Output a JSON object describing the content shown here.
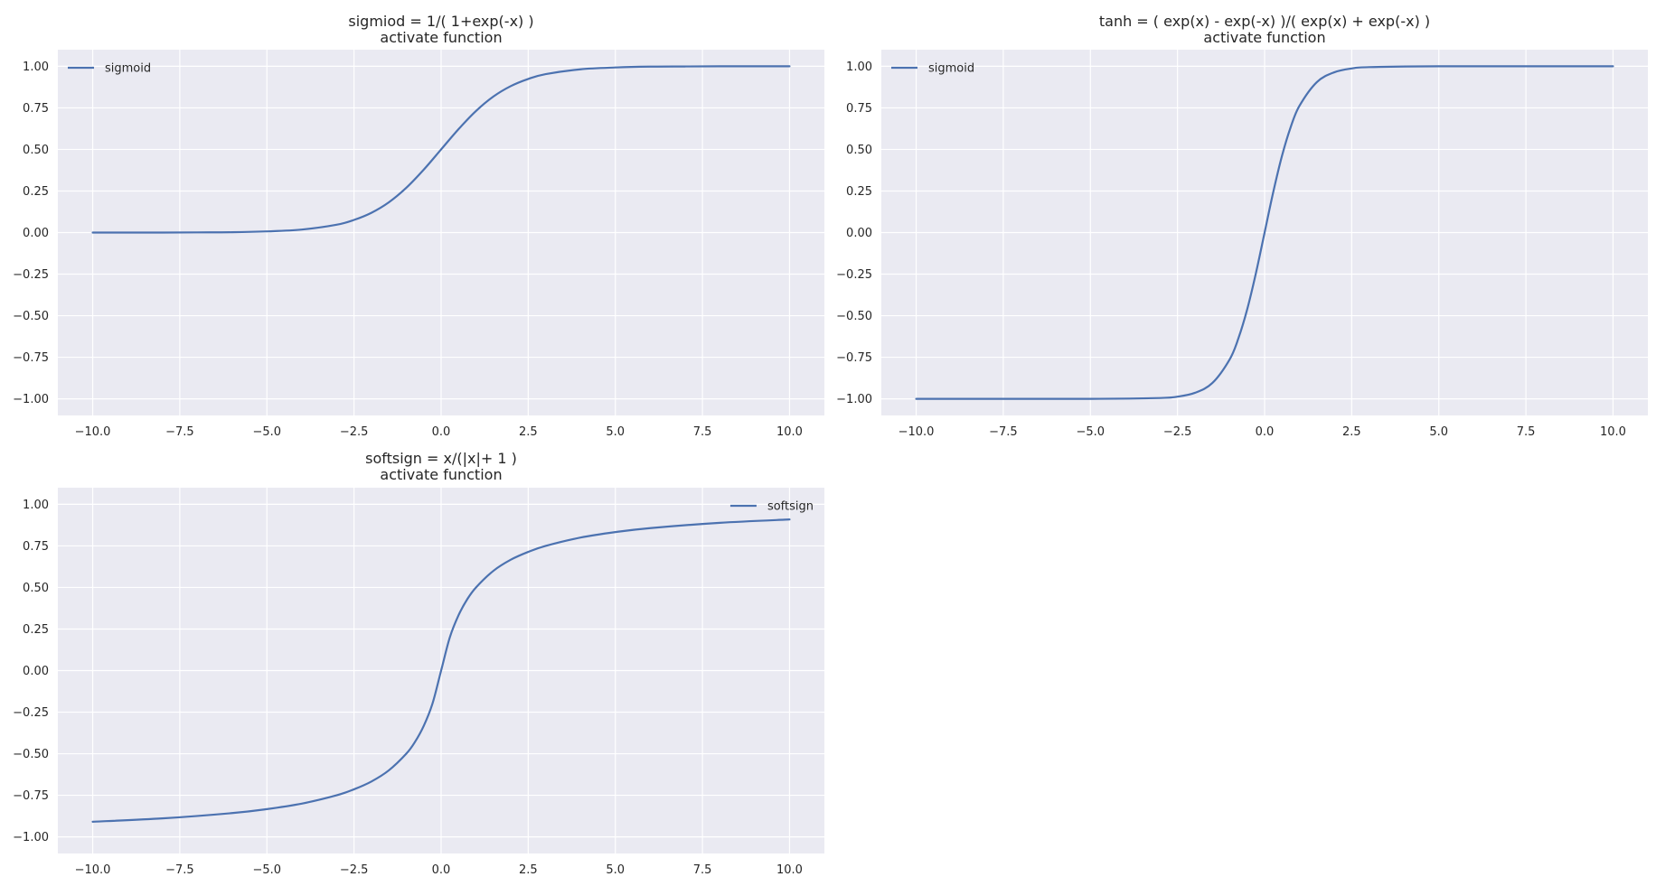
{
  "colors": {
    "background": "#ffffff",
    "plot_area": "#eaeaf2",
    "grid": "#ffffff",
    "line": "#4c72b0",
    "text": "#262626"
  },
  "chart_data": [
    {
      "type": "line",
      "function": "sigmoid",
      "title": "sigmiod = 1/( 1+exp(-x) )",
      "subtitle": "activate function",
      "xlabel": "",
      "ylabel": "",
      "xlim": [
        -11.0,
        11.0
      ],
      "ylim": [
        -1.1,
        1.1
      ],
      "xticks": [
        -10.0,
        -7.5,
        -5.0,
        -2.5,
        0.0,
        2.5,
        5.0,
        7.5,
        10.0
      ],
      "xtick_labels": [
        "−10.0",
        "−7.5",
        "−5.0",
        "−2.5",
        "0.0",
        "2.5",
        "5.0",
        "7.5",
        "10.0"
      ],
      "yticks": [
        -1.0,
        -0.75,
        -0.5,
        -0.25,
        0.0,
        0.25,
        0.5,
        0.75,
        1.0
      ],
      "ytick_labels": [
        "−1.00",
        "−0.75",
        "−0.50",
        "−0.25",
        "0.00",
        "0.25",
        "0.50",
        "0.75",
        "1.00"
      ],
      "grid": true,
      "legend_position": "upper left",
      "series": [
        {
          "name": "sigmoid",
          "x": [
            -10,
            -9,
            -8,
            -7,
            -6,
            -5,
            -4,
            -3,
            -2.5,
            -2,
            -1.5,
            -1,
            -0.5,
            0,
            0.5,
            1,
            1.5,
            2,
            2.5,
            3,
            4,
            5,
            6,
            7,
            8,
            9,
            10
          ],
          "y": [
            0.0,
            0.0,
            0.0,
            0.001,
            0.002,
            0.007,
            0.018,
            0.047,
            0.076,
            0.119,
            0.182,
            0.269,
            0.378,
            0.5,
            0.622,
            0.731,
            0.818,
            0.881,
            0.924,
            0.953,
            0.982,
            0.993,
            0.998,
            0.999,
            1.0,
            1.0,
            1.0
          ]
        }
      ]
    },
    {
      "type": "line",
      "function": "tanh",
      "title": "tanh = ( exp(x) - exp(-x) )/( exp(x) + exp(-x) )",
      "subtitle": "activate function",
      "xlabel": "",
      "ylabel": "",
      "xlim": [
        -11.0,
        11.0
      ],
      "ylim": [
        -1.1,
        1.1
      ],
      "xticks": [
        -10.0,
        -7.5,
        -5.0,
        -2.5,
        0.0,
        2.5,
        5.0,
        7.5,
        10.0
      ],
      "xtick_labels": [
        "−10.0",
        "−7.5",
        "−5.0",
        "−2.5",
        "0.0",
        "2.5",
        "5.0",
        "7.5",
        "10.0"
      ],
      "yticks": [
        -1.0,
        -0.75,
        -0.5,
        -0.25,
        0.0,
        0.25,
        0.5,
        0.75,
        1.0
      ],
      "ytick_labels": [
        "−1.00",
        "−0.75",
        "−0.50",
        "−0.25",
        "0.00",
        "0.25",
        "0.50",
        "0.75",
        "1.00"
      ],
      "grid": true,
      "legend_position": "upper left",
      "series": [
        {
          "name": "sigmoid",
          "x": [
            -10,
            -5,
            -3,
            -2.5,
            -2,
            -1.5,
            -1,
            -0.75,
            -0.5,
            -0.25,
            0,
            0.25,
            0.5,
            0.75,
            1,
            1.5,
            2,
            2.5,
            3,
            5,
            10
          ],
          "y": [
            -1.0,
            -1.0,
            -0.995,
            -0.987,
            -0.964,
            -0.905,
            -0.762,
            -0.635,
            -0.462,
            -0.245,
            0.0,
            0.245,
            0.462,
            0.635,
            0.762,
            0.905,
            0.964,
            0.987,
            0.995,
            1.0,
            1.0
          ]
        }
      ]
    },
    {
      "type": "line",
      "function": "softsign",
      "title": "softsign = x/(|x|+ 1 )",
      "subtitle": "activate function",
      "xlabel": "",
      "ylabel": "",
      "xlim": [
        -11.0,
        11.0
      ],
      "ylim": [
        -1.1,
        1.1
      ],
      "xticks": [
        -10.0,
        -7.5,
        -5.0,
        -2.5,
        0.0,
        2.5,
        5.0,
        7.5,
        10.0
      ],
      "xtick_labels": [
        "−10.0",
        "−7.5",
        "−5.0",
        "−2.5",
        "0.0",
        "2.5",
        "5.0",
        "7.5",
        "10.0"
      ],
      "yticks": [
        -1.0,
        -0.75,
        -0.5,
        -0.25,
        0.0,
        0.25,
        0.5,
        0.75,
        1.0
      ],
      "ytick_labels": [
        "−1.00",
        "−0.75",
        "−0.50",
        "−0.25",
        "0.00",
        "0.25",
        "0.50",
        "0.75",
        "1.00"
      ],
      "grid": true,
      "legend_position": "upper right",
      "series": [
        {
          "name": "softsign",
          "x": [
            -10,
            -8,
            -6,
            -5,
            -4,
            -3,
            -2.5,
            -2,
            -1.5,
            -1,
            -0.75,
            -0.5,
            -0.25,
            0,
            0.25,
            0.5,
            0.75,
            1,
            1.5,
            2,
            2.5,
            3,
            4,
            5,
            6,
            8,
            10
          ],
          "y": [
            -0.909,
            -0.889,
            -0.857,
            -0.833,
            -0.8,
            -0.75,
            -0.714,
            -0.667,
            -0.6,
            -0.5,
            -0.429,
            -0.333,
            -0.2,
            0.0,
            0.2,
            0.333,
            0.429,
            0.5,
            0.6,
            0.667,
            0.714,
            0.75,
            0.8,
            0.833,
            0.857,
            0.889,
            0.909
          ]
        }
      ]
    }
  ]
}
